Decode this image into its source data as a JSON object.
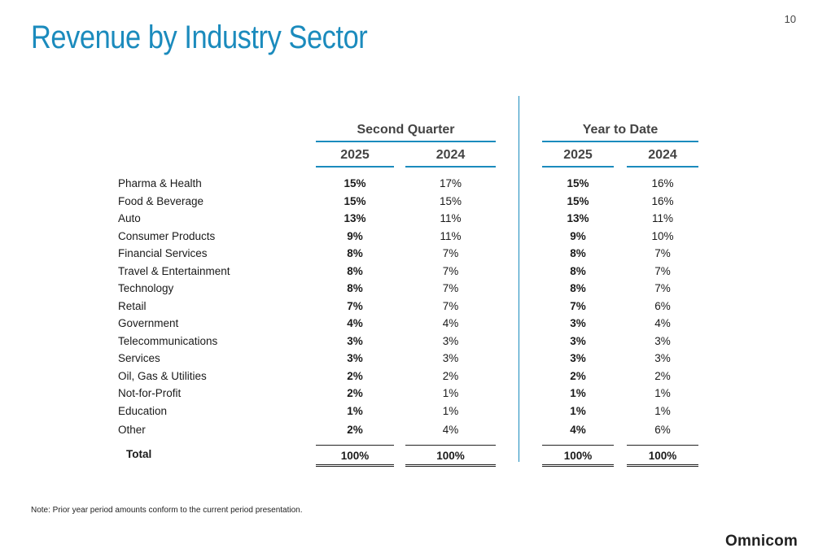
{
  "page_number": "10",
  "title": "Revenue by Industry Sector",
  "headers": {
    "second_quarter": "Second Quarter",
    "year_to_date": "Year to Date",
    "q_2025": "2025",
    "q_2024": "2024",
    "y_2025": "2025",
    "y_2024": "2024"
  },
  "rows": [
    {
      "label": "Pharma & Health",
      "q2025": "15%",
      "q2024": "17%",
      "ytd2025": "15%",
      "ytd2024": "16%"
    },
    {
      "label": "Food & Beverage",
      "q2025": "15%",
      "q2024": "15%",
      "ytd2025": "15%",
      "ytd2024": "16%"
    },
    {
      "label": "Auto",
      "q2025": "13%",
      "q2024": "11%",
      "ytd2025": "13%",
      "ytd2024": "11%"
    },
    {
      "label": "Consumer Products",
      "q2025": "9%",
      "q2024": "11%",
      "ytd2025": "9%",
      "ytd2024": "10%"
    },
    {
      "label": "Financial Services",
      "q2025": "8%",
      "q2024": "7%",
      "ytd2025": "8%",
      "ytd2024": "7%"
    },
    {
      "label": "Travel & Entertainment",
      "q2025": "8%",
      "q2024": "7%",
      "ytd2025": "8%",
      "ytd2024": "7%"
    },
    {
      "label": "Technology",
      "q2025": "8%",
      "q2024": "7%",
      "ytd2025": "8%",
      "ytd2024": "7%"
    },
    {
      "label": "Retail",
      "q2025": "7%",
      "q2024": "7%",
      "ytd2025": "7%",
      "ytd2024": "6%"
    },
    {
      "label": "Government",
      "q2025": "4%",
      "q2024": "4%",
      "ytd2025": "3%",
      "ytd2024": "4%"
    },
    {
      "label": "Telecommunications",
      "q2025": "3%",
      "q2024": "3%",
      "ytd2025": "3%",
      "ytd2024": "3%"
    },
    {
      "label": "Services",
      "q2025": "3%",
      "q2024": "3%",
      "ytd2025": "3%",
      "ytd2024": "3%"
    },
    {
      "label": "Oil, Gas & Utilities",
      "q2025": "2%",
      "q2024": "2%",
      "ytd2025": "2%",
      "ytd2024": "2%"
    },
    {
      "label": "Not-for-Profit",
      "q2025": "2%",
      "q2024": "1%",
      "ytd2025": "1%",
      "ytd2024": "1%"
    },
    {
      "label": "Education",
      "q2025": "1%",
      "q2024": "1%",
      "ytd2025": "1%",
      "ytd2024": "1%"
    },
    {
      "label": "Other",
      "q2025": "2%",
      "q2024": "4%",
      "ytd2025": "4%",
      "ytd2024": "6%"
    }
  ],
  "total": {
    "label": "Total",
    "q2025": "100%",
    "q2024": "100%",
    "ytd2025": "100%",
    "ytd2024": "100%"
  },
  "note": "Note:  Prior year period amounts conform to the current period presentation.",
  "logo": "Omnicom",
  "colors": {
    "accent": "#1b8bbd"
  }
}
